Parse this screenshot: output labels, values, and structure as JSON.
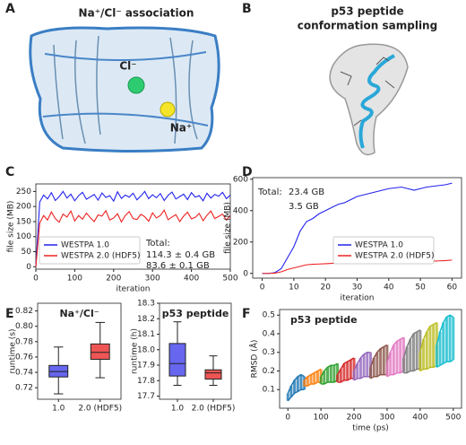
{
  "panels": [
    {
      "label": "A",
      "title": "Na⁺/Cl⁻ association",
      "annotations": [
        "Cl⁻",
        "Na⁺"
      ]
    },
    {
      "label": "B",
      "title": [
        "p53 peptide",
        "conformation sampling"
      ]
    }
  ],
  "chart_data": [
    {
      "type": "line",
      "label": "C",
      "xlabel": "iteration",
      "ylabel": "file size (MB)",
      "x": [
        0,
        10,
        20,
        30,
        40,
        50,
        60,
        70,
        80,
        90,
        100,
        110,
        120,
        130,
        140,
        150,
        160,
        170,
        180,
        190,
        200,
        210,
        220,
        230,
        240,
        250,
        260,
        270,
        280,
        290,
        300,
        310,
        320,
        330,
        340,
        350,
        360,
        370,
        380,
        390,
        400,
        410,
        420,
        430,
        440,
        450,
        460,
        470,
        480,
        490,
        500
      ],
      "series": [
        {
          "name": "WESTPA 1.0",
          "color": "#2222ee",
          "values": [
            0,
            215,
            238,
            225,
            246,
            220,
            233,
            250,
            228,
            241,
            219,
            236,
            247,
            224,
            232,
            240,
            221,
            245,
            230,
            236,
            218,
            249,
            227,
            238,
            231,
            244,
            222,
            235,
            250,
            226,
            239,
            229,
            243,
            220,
            237,
            248,
            225,
            233,
            241,
            223,
            246,
            231,
            236,
            219,
            244,
            228,
            240,
            234,
            247,
            226,
            238
          ]
        },
        {
          "name": "WESTPA 2.0 (HDF5)",
          "color": "#ee2222",
          "values": [
            0,
            145,
            170,
            155,
            182,
            160,
            148,
            175,
            165,
            185,
            152,
            170,
            158,
            178,
            163,
            150,
            172,
            168,
            186,
            155,
            162,
            176,
            149,
            170,
            183,
            160,
            157,
            174,
            166,
            151,
            179,
            162,
            170,
            188,
            156,
            165,
            173,
            150,
            168,
            181,
            159,
            164,
            177,
            153,
            171,
            185,
            160,
            167,
            175,
            155,
            170
          ]
        }
      ],
      "xlim": [
        0,
        500
      ],
      "xticks": [
        0,
        100,
        200,
        300,
        400,
        500
      ],
      "ylim": [
        -8,
        275
      ],
      "yticks": [
        0,
        50,
        100,
        150,
        200,
        250
      ],
      "legend": "lower left",
      "annotations": [
        {
          "text": "Total:",
          "color": "#222222"
        },
        {
          "text": "114.3 ± 0.4 GB",
          "color": "#2222ee"
        },
        {
          "text": "83.6 ± 0.1 GB",
          "color": "#ee2222"
        }
      ]
    },
    {
      "type": "line",
      "label": "D",
      "xlabel": "iteration",
      "ylabel": "file size (MB)",
      "x": [
        0,
        2,
        4,
        6,
        8,
        10,
        12,
        14,
        16,
        18,
        20,
        22,
        24,
        26,
        28,
        30,
        32,
        34,
        36,
        38,
        40,
        42,
        44,
        46,
        48,
        50,
        52,
        54,
        56,
        58,
        60
      ],
      "series": [
        {
          "name": "WESTPA 1.0",
          "color": "#2222ee",
          "values": [
            0,
            0,
            5,
            30,
            100,
            170,
            270,
            330,
            350,
            380,
            400,
            420,
            440,
            450,
            470,
            490,
            500,
            510,
            520,
            530,
            540,
            545,
            550,
            540,
            530,
            540,
            550,
            555,
            560,
            565,
            575
          ]
        },
        {
          "name": "WESTPA 2.0 (HDF5)",
          "color": "#ee2222",
          "values": [
            0,
            0,
            2,
            10,
            25,
            35,
            45,
            55,
            58,
            60,
            62,
            64,
            65,
            66,
            68,
            70,
            70,
            71,
            72,
            72,
            73,
            74,
            75,
            75,
            76,
            77,
            78,
            78,
            80,
            82,
            85
          ]
        }
      ],
      "xlim": [
        -3,
        63
      ],
      "xticks": [
        0,
        10,
        20,
        30,
        40,
        50,
        60
      ],
      "ylim": [
        -30,
        610
      ],
      "yticks": [
        0,
        200,
        400,
        600
      ],
      "legend": "center right",
      "annotations": [
        {
          "text": "Total:",
          "color": "#222222"
        },
        {
          "text": "23.4 GB",
          "color": "#2222ee"
        },
        {
          "text": "3.5 GB",
          "color": "#ee2222"
        }
      ]
    },
    {
      "type": "box",
      "label": "E",
      "title": "Na⁺/Cl⁻",
      "ylabel": "runtime (s)",
      "categories": [
        "1.0",
        "2.0 (HDF5)"
      ],
      "colors": [
        "#6666ee",
        "#ee5555"
      ],
      "boxes": [
        {
          "whislo": 0.712,
          "q1": 0.734,
          "med": 0.741,
          "q3": 0.749,
          "whishi": 0.773
        },
        {
          "whislo": 0.733,
          "q1": 0.757,
          "med": 0.766,
          "q3": 0.777,
          "whishi": 0.805
        }
      ],
      "ylim": [
        0.705,
        0.83
      ],
      "yticks": [
        0.72,
        0.74,
        0.76,
        0.78,
        {
          "value": 0.8,
          "label": "0.80"
        },
        0.82
      ]
    },
    {
      "type": "box",
      "title": "p53 peptide",
      "ylabel": "runtime (h)",
      "categories": [
        "1.0",
        "2.0 (HDF5)"
      ],
      "colors": [
        "#6666ee",
        "#ee5555"
      ],
      "boxes": [
        {
          "whislo": 17.77,
          "q1": 17.83,
          "med": 17.91,
          "q3": 18.04,
          "whishi": 18.18
        },
        {
          "whislo": 17.77,
          "q1": 17.81,
          "med": 17.85,
          "q3": 17.87,
          "whishi": 17.96
        }
      ],
      "ylim": [
        17.68,
        18.3
      ],
      "yticks": [
        17.7,
        17.8,
        17.9,
        {
          "value": 18,
          "label": "18.0"
        },
        18.1,
        18.2,
        18.3
      ]
    },
    {
      "type": "band",
      "label": "F",
      "title": "p53 peptide",
      "xlabel": "time (ps)",
      "ylabel": "RMSD (Å)",
      "series": [
        {
          "color": "#1f77b4",
          "x": [
            0,
            10,
            20,
            30,
            40,
            50
          ],
          "lower": [
            0.04,
            0.06,
            0.08,
            0.09,
            0.1,
            0.1
          ],
          "upper": [
            0.08,
            0.12,
            0.15,
            0.17,
            0.18,
            0.17
          ]
        },
        {
          "color": "#ff7f0e",
          "x": [
            50,
            60,
            70,
            80,
            90,
            100
          ],
          "lower": [
            0.12,
            0.12,
            0.13,
            0.13,
            0.14,
            0.14
          ],
          "upper": [
            0.15,
            0.17,
            0.18,
            0.19,
            0.2,
            0.21
          ]
        },
        {
          "color": "#2ca02c",
          "x": [
            100,
            110,
            120,
            130,
            140,
            150
          ],
          "lower": [
            0.13,
            0.13,
            0.14,
            0.14,
            0.14,
            0.15
          ],
          "upper": [
            0.17,
            0.2,
            0.22,
            0.23,
            0.23,
            0.24
          ]
        },
        {
          "color": "#d62728",
          "x": [
            150,
            160,
            170,
            180,
            190,
            200
          ],
          "lower": [
            0.14,
            0.14,
            0.15,
            0.15,
            0.16,
            0.16
          ],
          "upper": [
            0.18,
            0.21,
            0.24,
            0.25,
            0.26,
            0.27
          ]
        },
        {
          "color": "#9467bd",
          "x": [
            200,
            210,
            220,
            230,
            240,
            250
          ],
          "lower": [
            0.15,
            0.16,
            0.16,
            0.17,
            0.17,
            0.17
          ],
          "upper": [
            0.2,
            0.24,
            0.27,
            0.29,
            0.3,
            0.3
          ]
        },
        {
          "color": "#8c564b",
          "x": [
            250,
            260,
            270,
            280,
            290,
            300
          ],
          "lower": [
            0.16,
            0.17,
            0.17,
            0.18,
            0.18,
            0.18
          ],
          "upper": [
            0.22,
            0.27,
            0.3,
            0.32,
            0.33,
            0.34
          ]
        },
        {
          "color": "#e377c2",
          "x": [
            300,
            310,
            320,
            330,
            340,
            350
          ],
          "lower": [
            0.17,
            0.18,
            0.18,
            0.19,
            0.19,
            0.2
          ],
          "upper": [
            0.24,
            0.3,
            0.34,
            0.36,
            0.37,
            0.38
          ]
        },
        {
          "color": "#7f7f7f",
          "x": [
            350,
            360,
            370,
            380,
            390,
            400
          ],
          "lower": [
            0.19,
            0.19,
            0.2,
            0.2,
            0.21,
            0.21
          ],
          "upper": [
            0.27,
            0.33,
            0.37,
            0.4,
            0.41,
            0.42
          ]
        },
        {
          "color": "#bcbd22",
          "x": [
            400,
            410,
            420,
            430,
            440,
            450
          ],
          "lower": [
            0.2,
            0.21,
            0.21,
            0.22,
            0.22,
            0.23
          ],
          "upper": [
            0.3,
            0.37,
            0.41,
            0.44,
            0.45,
            0.46
          ]
        },
        {
          "color": "#17becf",
          "x": [
            450,
            460,
            470,
            480,
            490,
            500
          ],
          "lower": [
            0.22,
            0.23,
            0.24,
            0.25,
            0.25,
            0.26
          ],
          "upper": [
            0.34,
            0.41,
            0.46,
            0.49,
            0.5,
            0.49
          ]
        }
      ],
      "xlim": [
        -25,
        525
      ],
      "xticks": [
        0,
        100,
        200,
        300,
        400,
        500
      ],
      "ylim": [
        0,
        0.53
      ],
      "yticks": [
        0.1,
        0.2,
        0.3,
        0.4,
        0.5
      ]
    }
  ]
}
